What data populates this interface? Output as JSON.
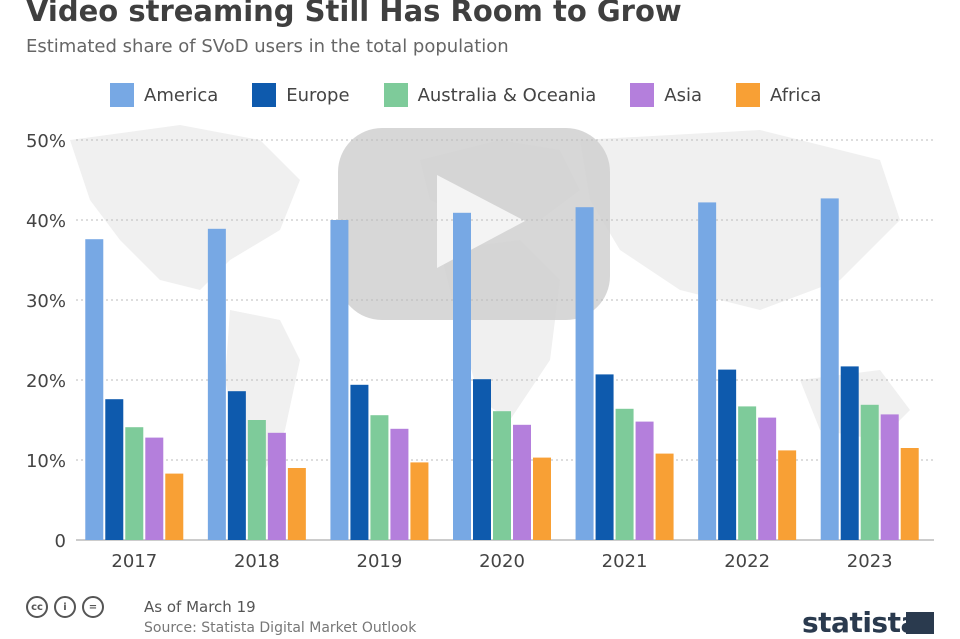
{
  "title": "Video streaming Still Has Room to Grow",
  "subtitle": "Estimated share of SVoD users in the total population",
  "footer": {
    "as_of": "As of March 19",
    "source": "Source: Statista Digital Market Outlook",
    "brand": "statista",
    "license_icons": [
      "cc-icon",
      "by-icon",
      "nd-icon"
    ]
  },
  "chart_data": {
    "type": "bar",
    "title": "Video streaming Still Has Room to Grow",
    "subtitle": "Estimated share of SVoD users in the total population",
    "categories": [
      "2017",
      "2018",
      "2019",
      "2020",
      "2021",
      "2022",
      "2023"
    ],
    "ylim": [
      0,
      50
    ],
    "yticks": [
      0,
      10,
      20,
      30,
      40,
      50
    ],
    "ytick_labels": [
      "0",
      "10%",
      "20%",
      "30%",
      "40%",
      "50%"
    ],
    "grid": true,
    "legend_position": "top",
    "series": [
      {
        "name": "America",
        "color": "#77a8e4",
        "values": [
          37.6,
          38.9,
          40.0,
          40.9,
          41.6,
          42.2,
          42.7
        ]
      },
      {
        "name": "Europe",
        "color": "#0e5aad",
        "values": [
          17.6,
          18.6,
          19.4,
          20.1,
          20.7,
          21.3,
          21.7
        ]
      },
      {
        "name": "Australia & Oceania",
        "color": "#7ecb9a",
        "values": [
          14.1,
          15.0,
          15.6,
          16.1,
          16.4,
          16.7,
          16.9
        ]
      },
      {
        "name": "Asia",
        "color": "#b47fdc",
        "values": [
          12.8,
          13.4,
          13.9,
          14.4,
          14.8,
          15.3,
          15.7
        ]
      },
      {
        "name": "Africa",
        "color": "#f8a035",
        "values": [
          8.3,
          9.0,
          9.7,
          10.3,
          10.8,
          11.2,
          11.5
        ]
      }
    ]
  }
}
